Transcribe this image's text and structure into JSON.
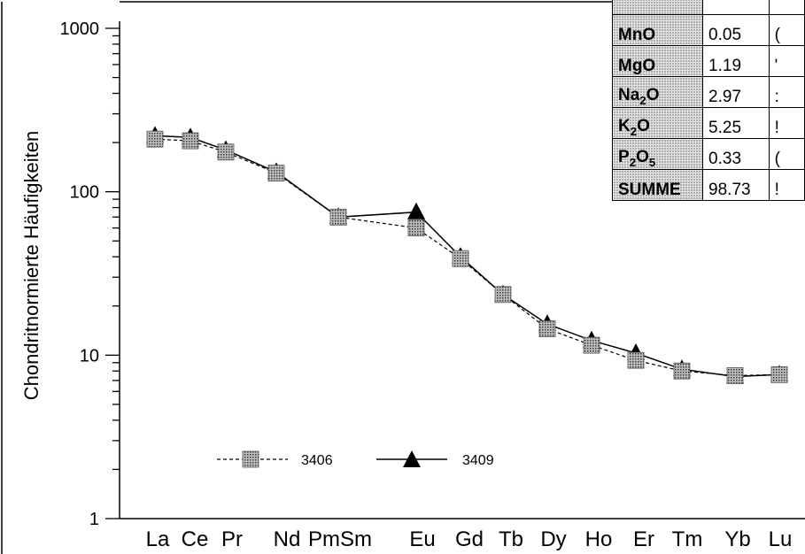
{
  "chart_data": {
    "type": "line",
    "ylabel": "Chondritnormierte Häufigkeiten",
    "yscale": "log",
    "ylim": [
      1,
      1000
    ],
    "yticks": [
      "1",
      "10",
      "100",
      "1000"
    ],
    "categories": [
      "La",
      "Ce",
      "Pr",
      "Nd",
      "Pm",
      "Sm",
      "Eu",
      "Gd",
      "Tb",
      "Dy",
      "Ho",
      "Er",
      "Tm",
      "Yb",
      "Lu"
    ],
    "category_labels": [
      "La",
      "Ce",
      "Pr",
      "Nd",
      "PmSm",
      "Eu",
      "Gd",
      "Tb",
      "Dy",
      "Ho",
      "Er",
      "Tm",
      "Yb",
      "Lu"
    ],
    "series": [
      {
        "name": "3406",
        "marker": "square",
        "line": "dashed",
        "values": [
          210,
          205,
          175,
          130,
          null,
          70,
          60,
          39,
          23.5,
          14.5,
          11.5,
          9.3,
          8.0,
          7.5,
          7.6
        ]
      },
      {
        "name": "3409",
        "marker": "triangle",
        "line": "solid",
        "values": [
          220,
          215,
          180,
          132,
          null,
          70,
          75,
          40,
          23.5,
          15.5,
          12.3,
          10.3,
          8.2,
          7.4,
          7.6
        ]
      }
    ],
    "grid": false,
    "legend": "bottom-left"
  },
  "table": {
    "rows": [
      {
        "oxide": "",
        "value": "",
        "value2": ""
      },
      {
        "oxide": "MnO",
        "value": "0.05",
        "value2": "("
      },
      {
        "oxide": "MgO",
        "value": "1.19",
        "value2": "'"
      },
      {
        "oxide": "Na2O",
        "value": "2.97",
        "value2": ":"
      },
      {
        "oxide": "K2O",
        "value": "5.25",
        "value2": "!"
      },
      {
        "oxide": "P2O5",
        "value": "0.33",
        "value2": "("
      },
      {
        "oxide": "SUMME",
        "value": "98.73",
        "value2": "!"
      }
    ]
  }
}
